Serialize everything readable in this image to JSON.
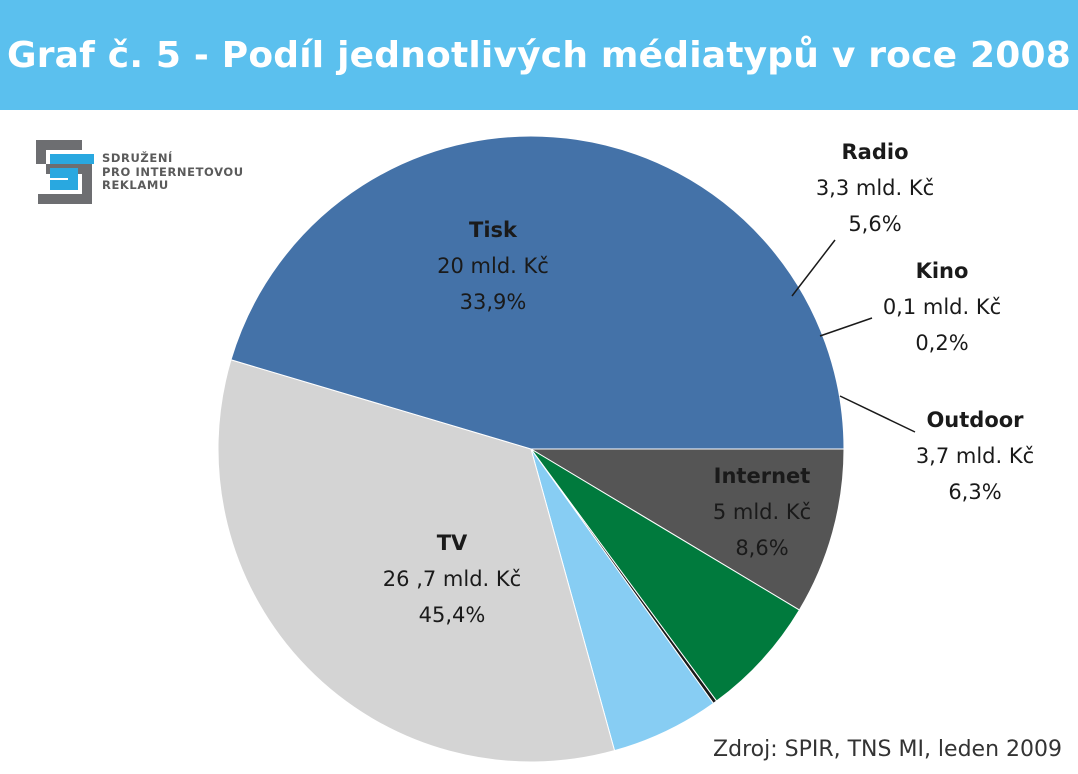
{
  "title": "Graf č. 5 - Podíl jednotlivých médiatypů v roce 2008",
  "logo": {
    "lines": [
      "SDRUŽENÍ",
      "PRO INTERNETOVOU",
      "REKLAMU"
    ],
    "colors": {
      "gray": "#6d6e71",
      "blue": "#29a8e0"
    }
  },
  "source": "Zdroj: SPIR, TNS MI, leden 2009",
  "colors": {
    "title_bar": "#5bc0ee"
  },
  "chart_data": {
    "type": "pie",
    "title": "Graf č. 5 - Podíl jednotlivých médiatypů v roce 2008",
    "slices": [
      {
        "name": "Internet",
        "value_label": "5 mld. Kč",
        "percent_label": "8,6%",
        "value": 5.0,
        "percent": 8.6,
        "color": "#555555"
      },
      {
        "name": "Outdoor",
        "value_label": "3,7 mld. Kč",
        "percent_label": "6,3%",
        "value": 3.7,
        "percent": 6.3,
        "color": "#007a3d"
      },
      {
        "name": "Kino",
        "value_label": "0,1 mld. Kč",
        "percent_label": "0,2%",
        "value": 0.1,
        "percent": 0.2,
        "color": "#1a1a1a"
      },
      {
        "name": "Radio",
        "value_label": "3,3 mld. Kč",
        "percent_label": "5,6%",
        "value": 3.3,
        "percent": 5.6,
        "color": "#87cdf3"
      },
      {
        "name": "Tisk",
        "value_label": "20 mld. Kč",
        "percent_label": "33,9%",
        "value": 20.0,
        "percent": 33.9,
        "color": "#d4d4d4"
      },
      {
        "name": "TV",
        "value_label": "26 ,7 mld. Kč",
        "percent_label": "45,4%",
        "value": 26.7,
        "percent": 45.4,
        "color": "#4472a8"
      }
    ]
  }
}
